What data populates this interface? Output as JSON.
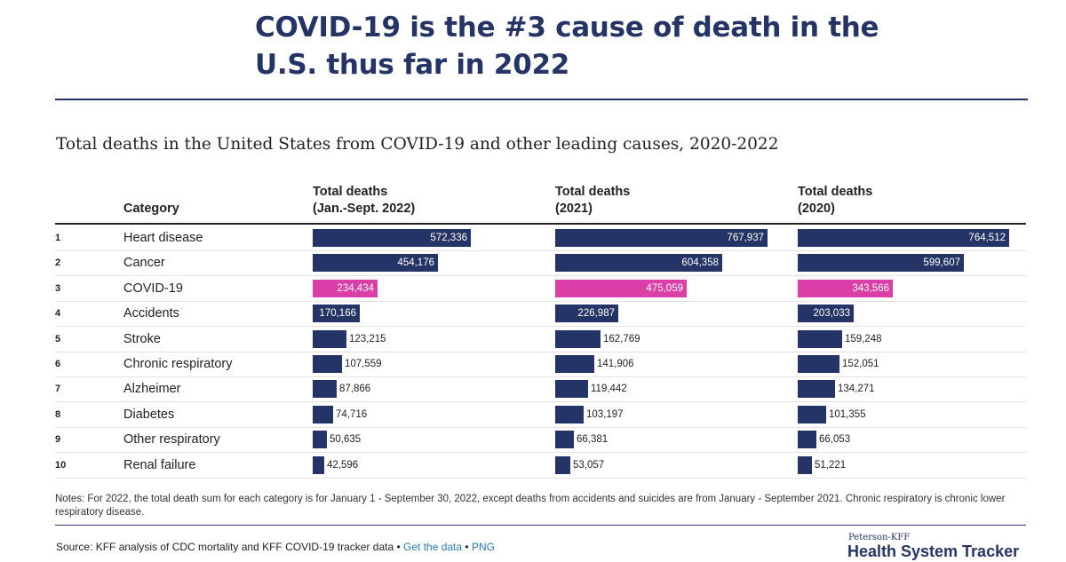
{
  "headline": "COVID-19 is the #3 cause of death in the U.S. thus far in 2022",
  "chart_data": {
    "type": "bar",
    "title": "Total deaths in the United States from COVID-19 and other leading causes, 2020-2022",
    "category_header": "Category",
    "categories": [
      "Heart disease",
      "Cancer",
      "COVID-19",
      "Accidents",
      "Stroke",
      "Chronic respiratory",
      "Alzheimer",
      "Diabetes",
      "Other respiratory",
      "Renal failure"
    ],
    "ranks": [
      "1",
      "2",
      "3",
      "4",
      "5",
      "6",
      "7",
      "8",
      "9",
      "10"
    ],
    "highlight_category": "COVID-19",
    "colors": {
      "bar": "#253466",
      "highlight": "#d93fa6"
    },
    "series": [
      {
        "name": "Total deaths (Jan.-Sept. 2022)",
        "header_line1": "Total deaths",
        "header_line2": "(Jan.-Sept. 2022)",
        "values": [
          572336,
          454176,
          234434,
          170166,
          123215,
          107559,
          87866,
          74716,
          50635,
          42596
        ],
        "labels": [
          "572,336",
          "454,176",
          "234,434",
          "170,166",
          "123,215",
          "107,559",
          "87,866",
          "74,716",
          "50,635",
          "42,596"
        ]
      },
      {
        "name": "Total deaths (2021)",
        "header_line1": "Total deaths",
        "header_line2": "(2021)",
        "values": [
          767937,
          604358,
          475059,
          226987,
          162769,
          141906,
          119442,
          103197,
          66381,
          53057
        ],
        "labels": [
          "767,937",
          "604,358",
          "475,059",
          "226,987",
          "162,769",
          "141,906",
          "119,442",
          "103,197",
          "66,381",
          "53,057"
        ]
      },
      {
        "name": "Total deaths (2020)",
        "header_line1": "Total deaths",
        "header_line2": "(2020)",
        "values": [
          764512,
          599607,
          343566,
          203033,
          159248,
          152051,
          134271,
          101355,
          66053,
          51221
        ],
        "labels": [
          "764,512",
          "599,607",
          "343,566",
          "203,033",
          "159,248",
          "152,051",
          "134,271",
          "101,355",
          "66,053",
          "51,221"
        ]
      }
    ]
  },
  "notes": "Notes: For 2022, the total death sum for each category is for January 1 - September 30, 2022, except deaths from accidents and suicides are from January - September 2021. Chronic respiratory is chronic lower respiratory disease.",
  "source": {
    "text": "Source: KFF analysis of CDC mortality and KFF COVID-19 tracker data",
    "separator": "•",
    "get_data_link": "Get the data",
    "png_link": "PNG"
  },
  "brand": {
    "small": "Peterson-KFF",
    "big": "Health System Tracker"
  }
}
